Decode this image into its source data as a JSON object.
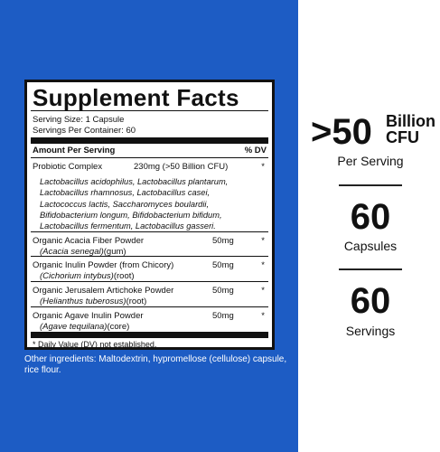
{
  "panel": {
    "title": "Supplement Facts",
    "serving_size": "Serving Size: 1 Capsule",
    "servings_per_container": "Servings Per Container: 60",
    "amount_header": "Amount Per Serving",
    "dv_header": "% DV",
    "probiotic": {
      "name": "Probiotic Complex",
      "amount": "230mg (>50 Billion CFU)",
      "dv": "*",
      "strains": [
        "Lactobacillus acidophilus, Lactobacillus plantarum,",
        "Lactobacillus rhamnosus, Lactobacillus casei,",
        "Lactococcus lactis, Saccharomyces boulardii,",
        "Bifidobacterium longum, Bifidobacterium bifidum,",
        "Lactobacillus fermentum, Lactobacillus gasseri."
      ]
    },
    "rows": [
      {
        "name": "Organic Acacia Fiber Powder",
        "latin": "(Acacia senegal)",
        "part": "(gum)",
        "amount": "50mg",
        "dv": "*"
      },
      {
        "name": "Organic Inulin Powder (from Chicory)",
        "latin": "(Cichorium intybus)",
        "part": "(root)",
        "amount": "50mg",
        "dv": "*"
      },
      {
        "name": "Organic Jerusalem Artichoke Powder",
        "latin": "(Helianthus tuberosus)",
        "part": "(root)",
        "amount": "50mg",
        "dv": "*"
      },
      {
        "name": "Organic Agave Inulin Powder",
        "latin": "(Agave tequilana)",
        "part": "(core)",
        "amount": "50mg",
        "dv": "*"
      }
    ],
    "footnote": "* Daily Value (DV) not established."
  },
  "other_ingredients": [
    "Other ingredients: Maltodextrin, hypromellose (cellulose) capsule,",
    "rice flour."
  ],
  "stats": {
    "cfu_value": ">50",
    "cfu_unit_1": "Billion",
    "cfu_unit_2": "CFU",
    "cfu_label": "Per Serving",
    "capsules_value": "60",
    "capsules_label": "Capsules",
    "servings_value": "60",
    "servings_label": "Servings"
  }
}
